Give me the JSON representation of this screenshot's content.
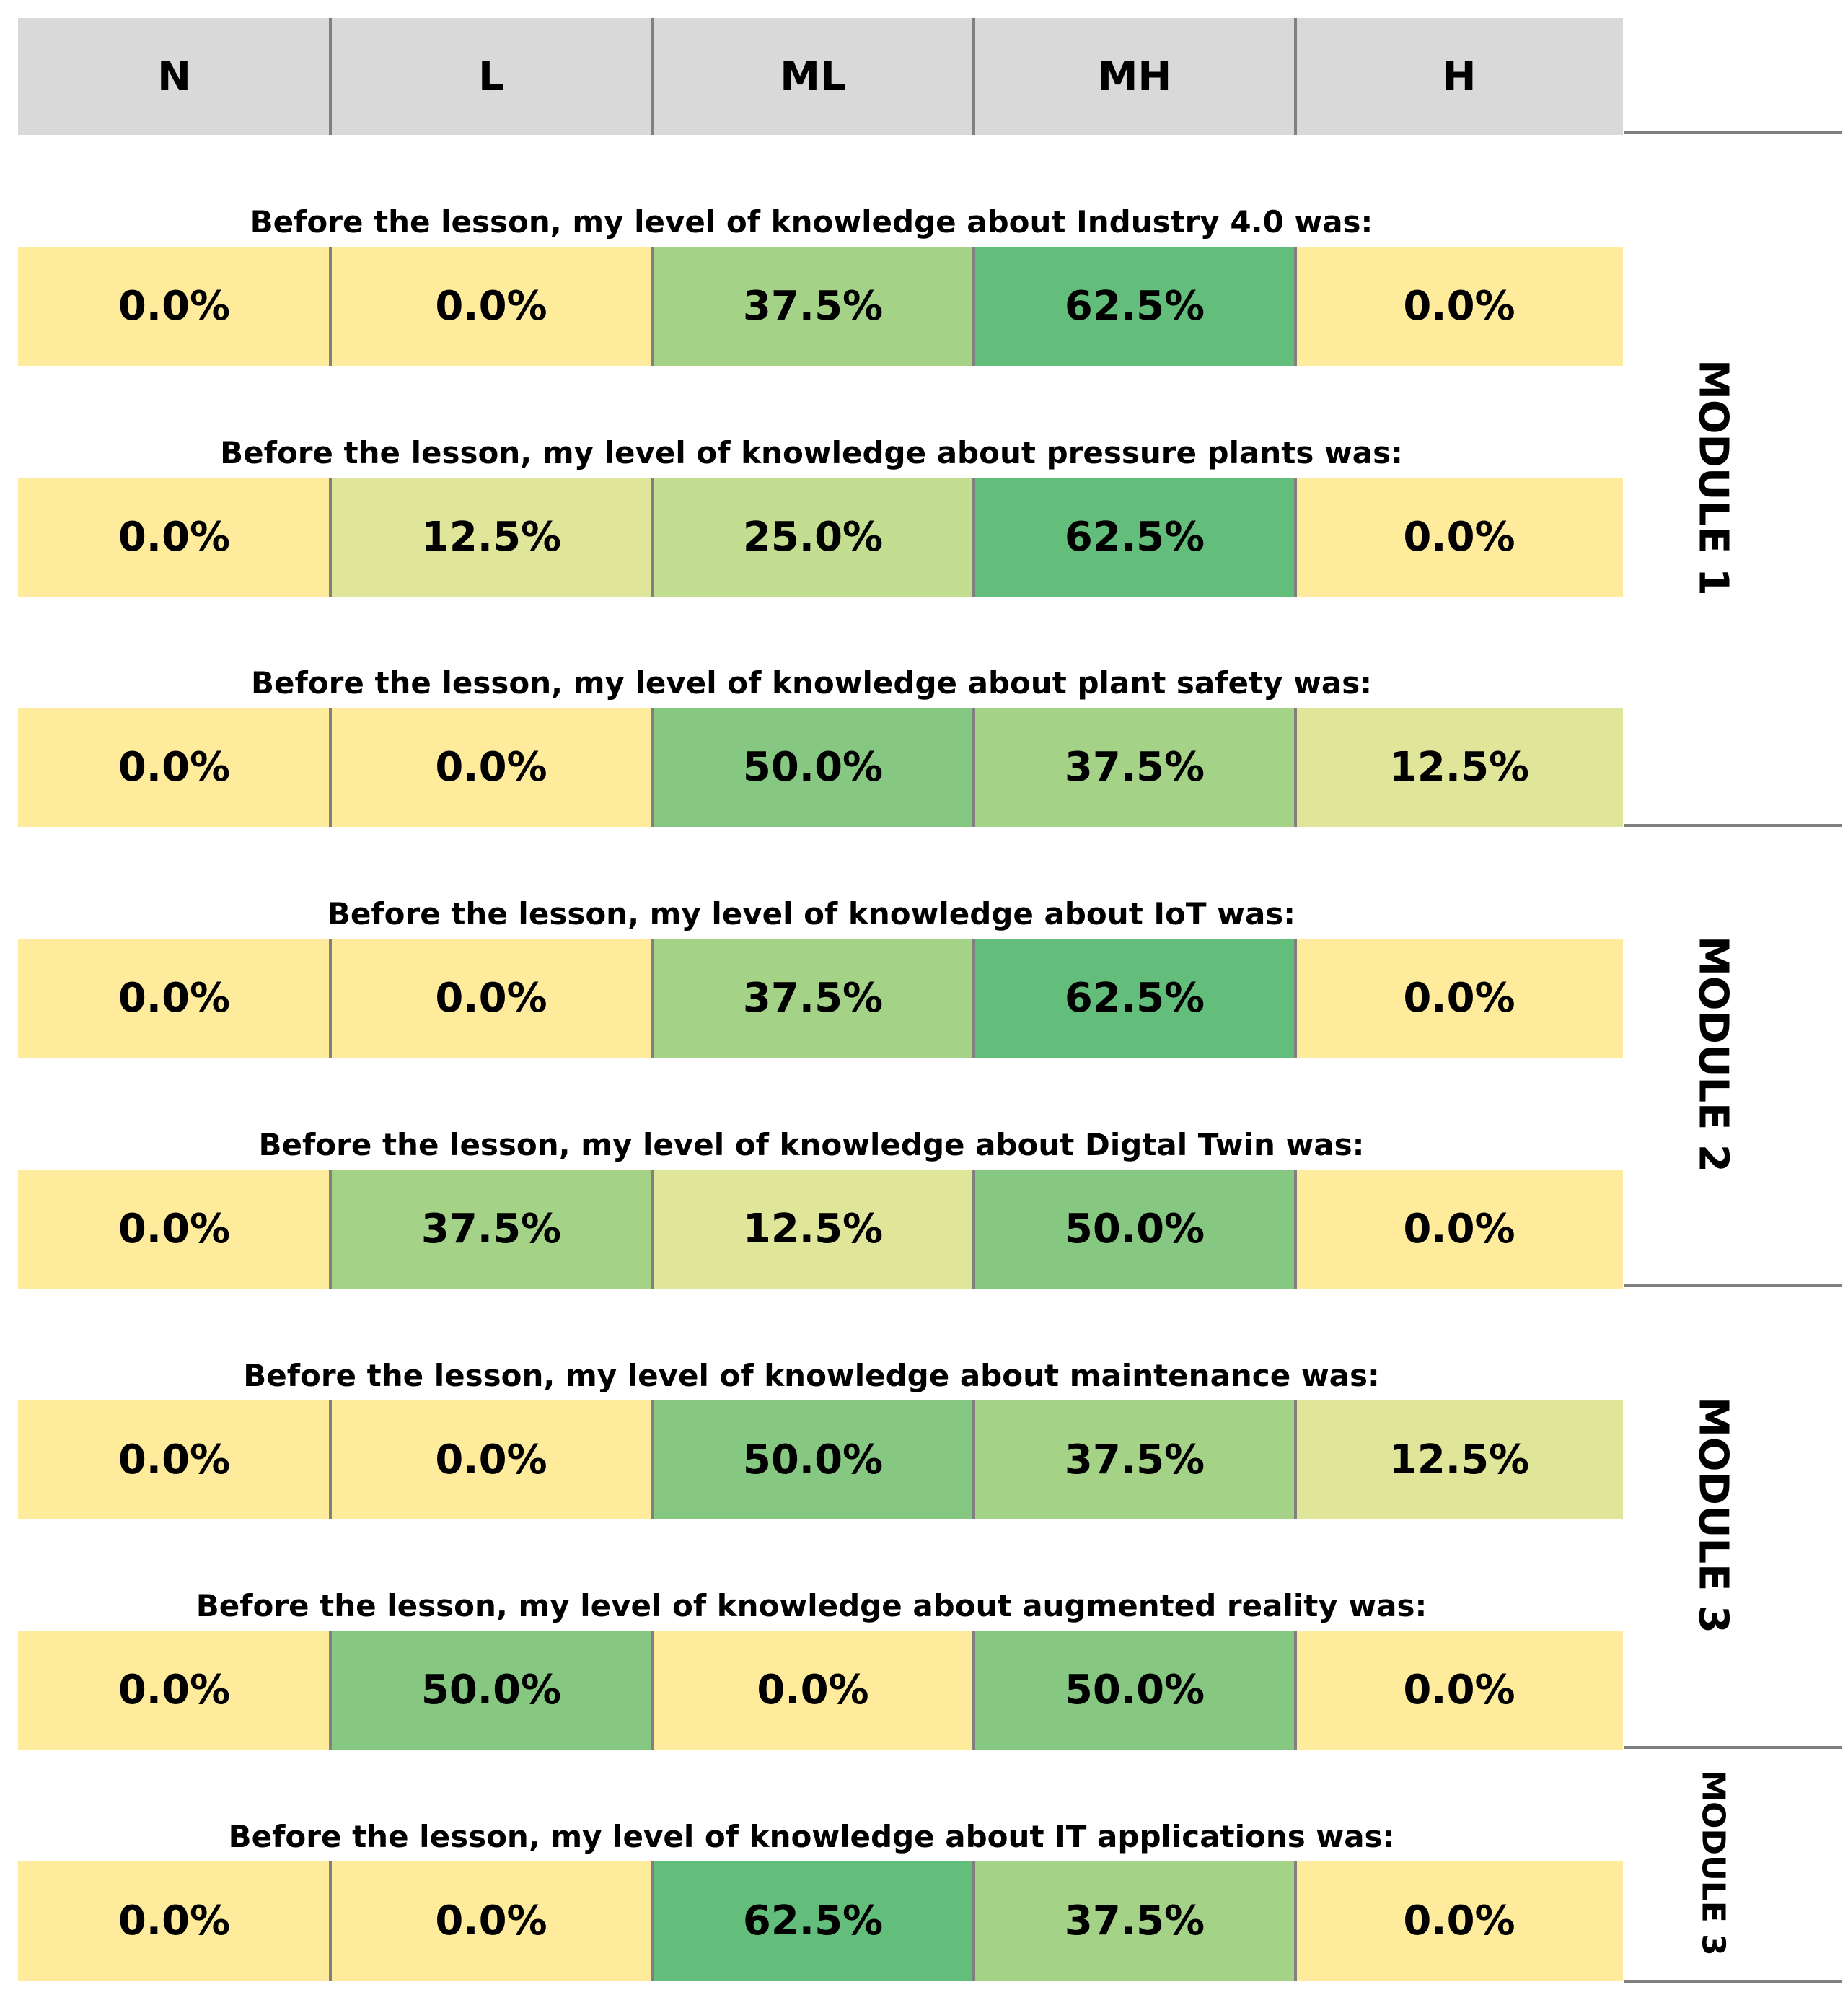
{
  "chart_data": {
    "type": "table",
    "columns": [
      "N",
      "L",
      "ML",
      "MH",
      "H"
    ],
    "rows": [
      {
        "question": "Before the lesson, my level of knowledge about Industry 4.0 was:",
        "values": [
          "0.0%",
          "0.0%",
          "37.5%",
          "62.5%",
          "0.0%"
        ],
        "nums": [
          0.0,
          0.0,
          37.5,
          62.5,
          0.0
        ]
      },
      {
        "question": "Before the lesson, my level of knowledge about pressure plants was:",
        "values": [
          "0.0%",
          "12.5%",
          "25.0%",
          "62.5%",
          "0.0%"
        ],
        "nums": [
          0.0,
          12.5,
          25.0,
          62.5,
          0.0
        ]
      },
      {
        "question": "Before the lesson, my level of knowledge about plant safety was:",
        "values": [
          "0.0%",
          "0.0%",
          "50.0%",
          "37.5%",
          "12.5%"
        ],
        "nums": [
          0.0,
          0.0,
          50.0,
          37.5,
          12.5
        ]
      },
      {
        "question": "Before the lesson, my level of knowledge about IoT was:",
        "values": [
          "0.0%",
          "0.0%",
          "37.5%",
          "62.5%",
          "0.0%"
        ],
        "nums": [
          0.0,
          0.0,
          37.5,
          62.5,
          0.0
        ]
      },
      {
        "question": "Before the lesson, my level of knowledge about Digtal Twin was:",
        "values": [
          "0.0%",
          "37.5%",
          "12.5%",
          "50.0%",
          "0.0%"
        ],
        "nums": [
          0.0,
          37.5,
          12.5,
          50.0,
          0.0
        ]
      },
      {
        "question": "Before the lesson, my level of knowledge about maintenance was:",
        "values": [
          "0.0%",
          "0.0%",
          "50.0%",
          "37.5%",
          "12.5%"
        ],
        "nums": [
          0.0,
          0.0,
          50.0,
          37.5,
          12.5
        ]
      },
      {
        "question": "Before the lesson, my level of knowledge about augmented reality was:",
        "values": [
          "0.0%",
          "50.0%",
          "0.0%",
          "50.0%",
          "0.0%"
        ],
        "nums": [
          0.0,
          50.0,
          0.0,
          50.0,
          0.0
        ]
      },
      {
        "question": "Before the lesson, my level of knowledge about IT applications was:",
        "values": [
          "0.0%",
          "0.0%",
          "62.5%",
          "37.5%",
          "0.0%"
        ],
        "nums": [
          0.0,
          0.0,
          62.5,
          37.5,
          0.0
        ]
      }
    ],
    "modules": [
      {
        "label": "MODULE 1",
        "rows": [
          0,
          1,
          2
        ]
      },
      {
        "label": "MODULE 2",
        "rows": [
          3,
          4
        ]
      },
      {
        "label": "MODULE 3",
        "rows": [
          5,
          6
        ]
      },
      {
        "label": "MODULE 3",
        "rows": [
          7
        ]
      }
    ],
    "color_scale": {
      "0": "#ffeb9c",
      "12.5": "#e0e699",
      "25.0": "#c4de91",
      "37.5": "#a4d387",
      "50.0": "#86c881",
      "62.5": "#63be7b"
    }
  }
}
